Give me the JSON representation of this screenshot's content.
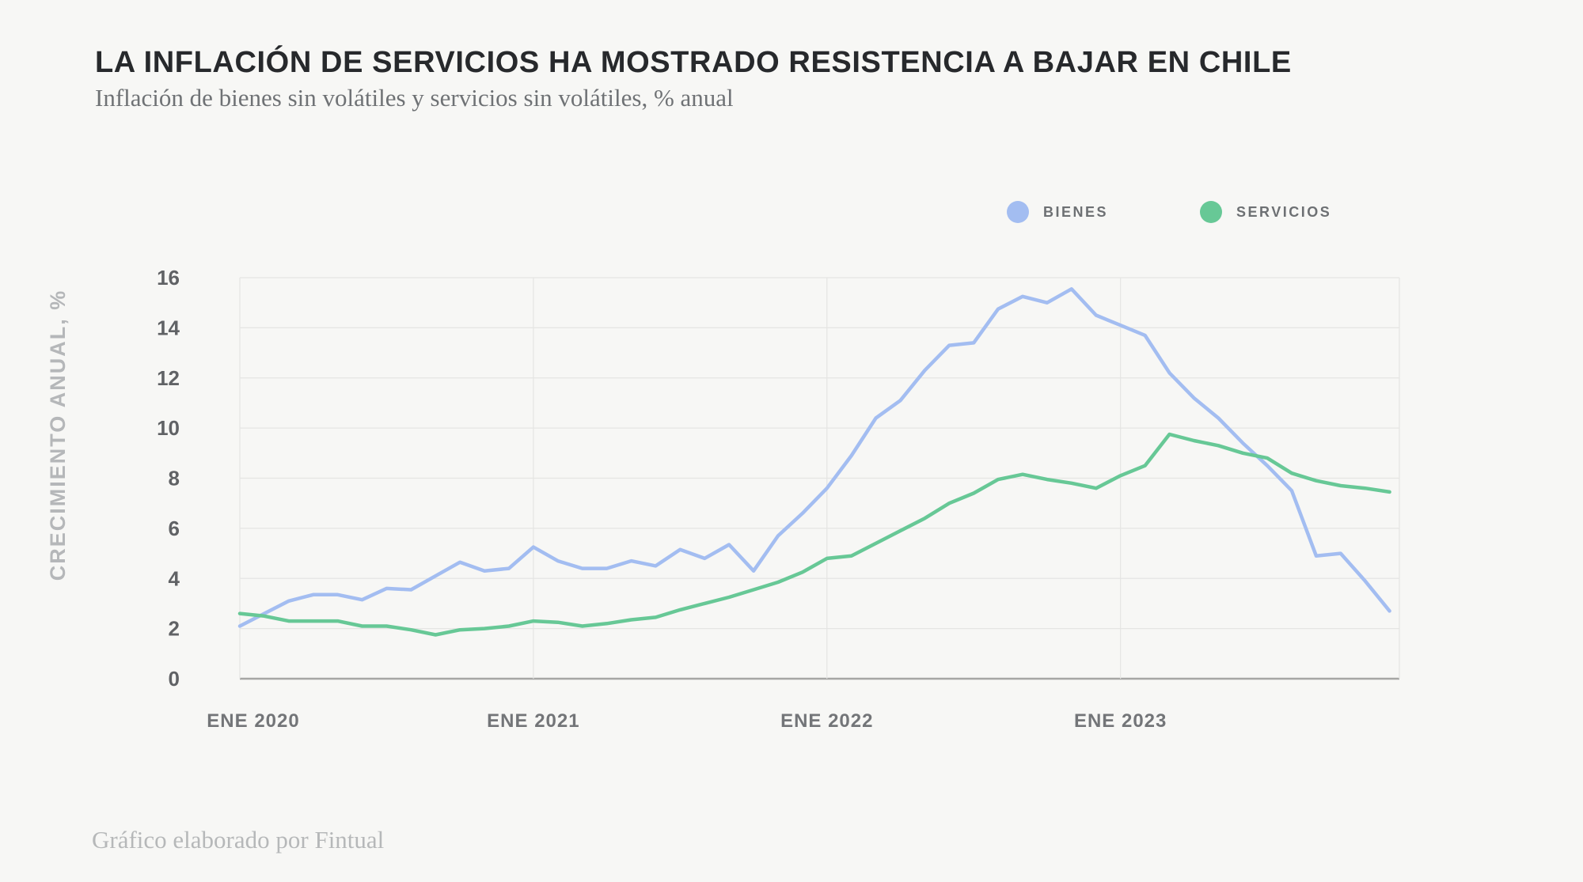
{
  "footer": {
    "credit": "Gráfico elaborado por Fintual"
  },
  "colors": {
    "background": "#f7f7f5",
    "title": "#27292c",
    "subtitle": "#6f7275",
    "legend_label": "#6d7073",
    "y_tick_label": "#606265",
    "x_tick_label": "#737578",
    "y_axis_title": "#b5b7b9",
    "footer": "#b6b8b9",
    "gridline": "#e5e5e3",
    "axis_line": "#a6a6a4",
    "bienes": "#a3bdf1",
    "servicios": "#67c896"
  },
  "chart_data": {
    "type": "line",
    "title": "LA INFLACIÓN DE SERVICIOS HA MOSTRADO RESISTENCIA A BAJAR EN CHILE",
    "subtitle": "Inflación de bienes sin volátiles y servicios sin volátiles, % anual",
    "xlabel": "",
    "ylabel": "CRECIMIENTO ANUAL, %",
    "ylim": [
      0,
      16
    ],
    "ytick_step": 2,
    "grid": true,
    "legend_position": "top-right",
    "x": [
      "ENE 2020",
      "FEB 2020",
      "MAR 2020",
      "ABR 2020",
      "MAY 2020",
      "JUN 2020",
      "JUL 2020",
      "AGO 2020",
      "SEP 2020",
      "OCT 2020",
      "NOV 2020",
      "DIC 2020",
      "ENE 2021",
      "FEB 2021",
      "MAR 2021",
      "ABR 2021",
      "MAY 2021",
      "JUN 2021",
      "JUL 2021",
      "AGO 2021",
      "SEP 2021",
      "OCT 2021",
      "NOV 2021",
      "DIC 2021",
      "ENE 2022",
      "FEB 2022",
      "MAR 2022",
      "ABR 2022",
      "MAY 2022",
      "JUN 2022",
      "JUL 2022",
      "AGO 2022",
      "SEP 2022",
      "OCT 2022",
      "NOV 2022",
      "DIC 2022",
      "ENE 2023",
      "FEB 2023",
      "MAR 2023",
      "ABR 2023",
      "MAY 2023",
      "JUN 2023",
      "JUL 2023",
      "AGO 2023",
      "SEP 2023",
      "OCT 2023",
      "NOV 2023",
      "DIC 2023"
    ],
    "x_tick_labels": [
      "ENE 2020",
      "ENE 2021",
      "ENE 2022",
      "ENE 2023"
    ],
    "x_tick_months": [
      0,
      12,
      24,
      36
    ],
    "series": [
      {
        "name": "BIENES",
        "color": "#a3bdf1",
        "values": [
          2.1,
          2.6,
          3.1,
          3.35,
          3.35,
          3.15,
          3.6,
          3.55,
          4.1,
          4.65,
          4.3,
          4.4,
          5.25,
          4.7,
          4.4,
          4.4,
          4.7,
          4.5,
          5.15,
          4.8,
          5.35,
          4.3,
          5.7,
          6.6,
          7.6,
          8.9,
          10.4,
          11.1,
          12.3,
          13.3,
          13.4,
          14.75,
          15.25,
          15.0,
          15.55,
          14.5,
          14.1,
          13.7,
          12.2,
          11.2,
          10.4,
          9.4,
          8.5,
          7.5,
          4.9,
          5.0,
          3.9,
          2.7
        ]
      },
      {
        "name": "SERVICIOS",
        "color": "#67c896",
        "values": [
          2.6,
          2.5,
          2.3,
          2.3,
          2.3,
          2.1,
          2.1,
          1.95,
          1.75,
          1.95,
          2.0,
          2.1,
          2.3,
          2.25,
          2.1,
          2.2,
          2.35,
          2.45,
          2.75,
          3.0,
          3.25,
          3.55,
          3.85,
          4.25,
          4.8,
          4.9,
          5.4,
          5.9,
          6.4,
          7.0,
          7.4,
          7.95,
          8.15,
          7.95,
          7.8,
          7.6,
          8.1,
          8.5,
          9.75,
          9.5,
          9.3,
          9.0,
          8.8,
          8.2,
          7.9,
          7.7,
          7.6,
          7.45
        ]
      }
    ]
  }
}
